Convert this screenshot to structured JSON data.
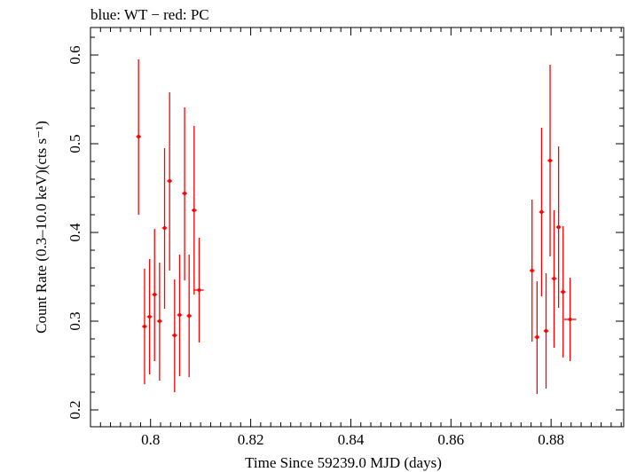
{
  "chart_data": {
    "type": "scatter",
    "title": "blue: WT − red: PC",
    "xlabel": "Time Since 59239.0 MJD (days)",
    "ylabel": "Count Rate (0.3–10.0 keV)(cts s⁻¹)",
    "xlim": [
      0.788,
      0.8945
    ],
    "ylim": [
      0.181,
      0.631
    ],
    "xticks": [
      0.8,
      0.82,
      0.84,
      0.86,
      0.88
    ],
    "xtick_labels": [
      "0.8",
      "0.82",
      "0.84",
      "0.86",
      "0.88"
    ],
    "yticks": [
      0.2,
      0.3,
      0.4,
      0.5,
      0.6
    ],
    "ytick_labels": [
      "0.2",
      "0.3",
      "0.4",
      "0.5",
      "0.6"
    ],
    "grid": false,
    "series": [
      {
        "color": "#ff0000",
        "points": [
          {
            "x": 0.7976,
            "y": 0.508,
            "ylo": 0.42,
            "yhi": 0.595,
            "xerr": 0.0005
          },
          {
            "x": 0.7988,
            "y": 0.294,
            "ylo": 0.229,
            "yhi": 0.359,
            "xerr": 0.0005
          },
          {
            "x": 0.7998,
            "y": 0.305,
            "ylo": 0.24,
            "yhi": 0.37,
            "xerr": 0.0005
          },
          {
            "x": 0.8008,
            "y": 0.33,
            "ylo": 0.255,
            "yhi": 0.404,
            "xerr": 0.0005
          },
          {
            "x": 0.8018,
            "y": 0.3,
            "ylo": 0.233,
            "yhi": 0.366,
            "xerr": 0.0005
          },
          {
            "x": 0.8028,
            "y": 0.405,
            "ylo": 0.314,
            "yhi": 0.495,
            "xerr": 0.0005
          },
          {
            "x": 0.8038,
            "y": 0.458,
            "ylo": 0.357,
            "yhi": 0.558,
            "xerr": 0.0005
          },
          {
            "x": 0.8048,
            "y": 0.284,
            "ylo": 0.22,
            "yhi": 0.347,
            "xerr": 0.0005
          },
          {
            "x": 0.8058,
            "y": 0.307,
            "ylo": 0.238,
            "yhi": 0.375,
            "xerr": 0.0005
          },
          {
            "x": 0.8068,
            "y": 0.444,
            "ylo": 0.346,
            "yhi": 0.541,
            "xerr": 0.0005
          },
          {
            "x": 0.8077,
            "y": 0.306,
            "ylo": 0.237,
            "yhi": 0.375,
            "xerr": 0.0005
          },
          {
            "x": 0.8087,
            "y": 0.425,
            "ylo": 0.33,
            "yhi": 0.52,
            "xerr": 0.0005
          },
          {
            "x": 0.8097,
            "y": 0.335,
            "ylo": 0.276,
            "yhi": 0.394,
            "xerr": 0.0009
          },
          {
            "x": 0.8762,
            "y": 0.357,
            "ylo": 0.277,
            "yhi": 0.437,
            "xerr": 0.0005
          },
          {
            "x": 0.8772,
            "y": 0.282,
            "ylo": 0.218,
            "yhi": 0.345,
            "xerr": 0.0005
          },
          {
            "x": 0.8781,
            "y": 0.423,
            "ylo": 0.328,
            "yhi": 0.518,
            "xerr": 0.0005
          },
          {
            "x": 0.879,
            "y": 0.289,
            "ylo": 0.224,
            "yhi": 0.354,
            "xerr": 0.0005
          },
          {
            "x": 0.8798,
            "y": 0.481,
            "ylo": 0.373,
            "yhi": 0.589,
            "xerr": 0.0005
          },
          {
            "x": 0.8806,
            "y": 0.348,
            "ylo": 0.27,
            "yhi": 0.425,
            "xerr": 0.0005
          },
          {
            "x": 0.8815,
            "y": 0.406,
            "ylo": 0.315,
            "yhi": 0.497,
            "xerr": 0.0005
          },
          {
            "x": 0.8824,
            "y": 0.333,
            "ylo": 0.259,
            "yhi": 0.407,
            "xerr": 0.0005
          },
          {
            "x": 0.8838,
            "y": 0.302,
            "ylo": 0.255,
            "yhi": 0.349,
            "xerr": 0.0012
          }
        ]
      }
    ]
  }
}
